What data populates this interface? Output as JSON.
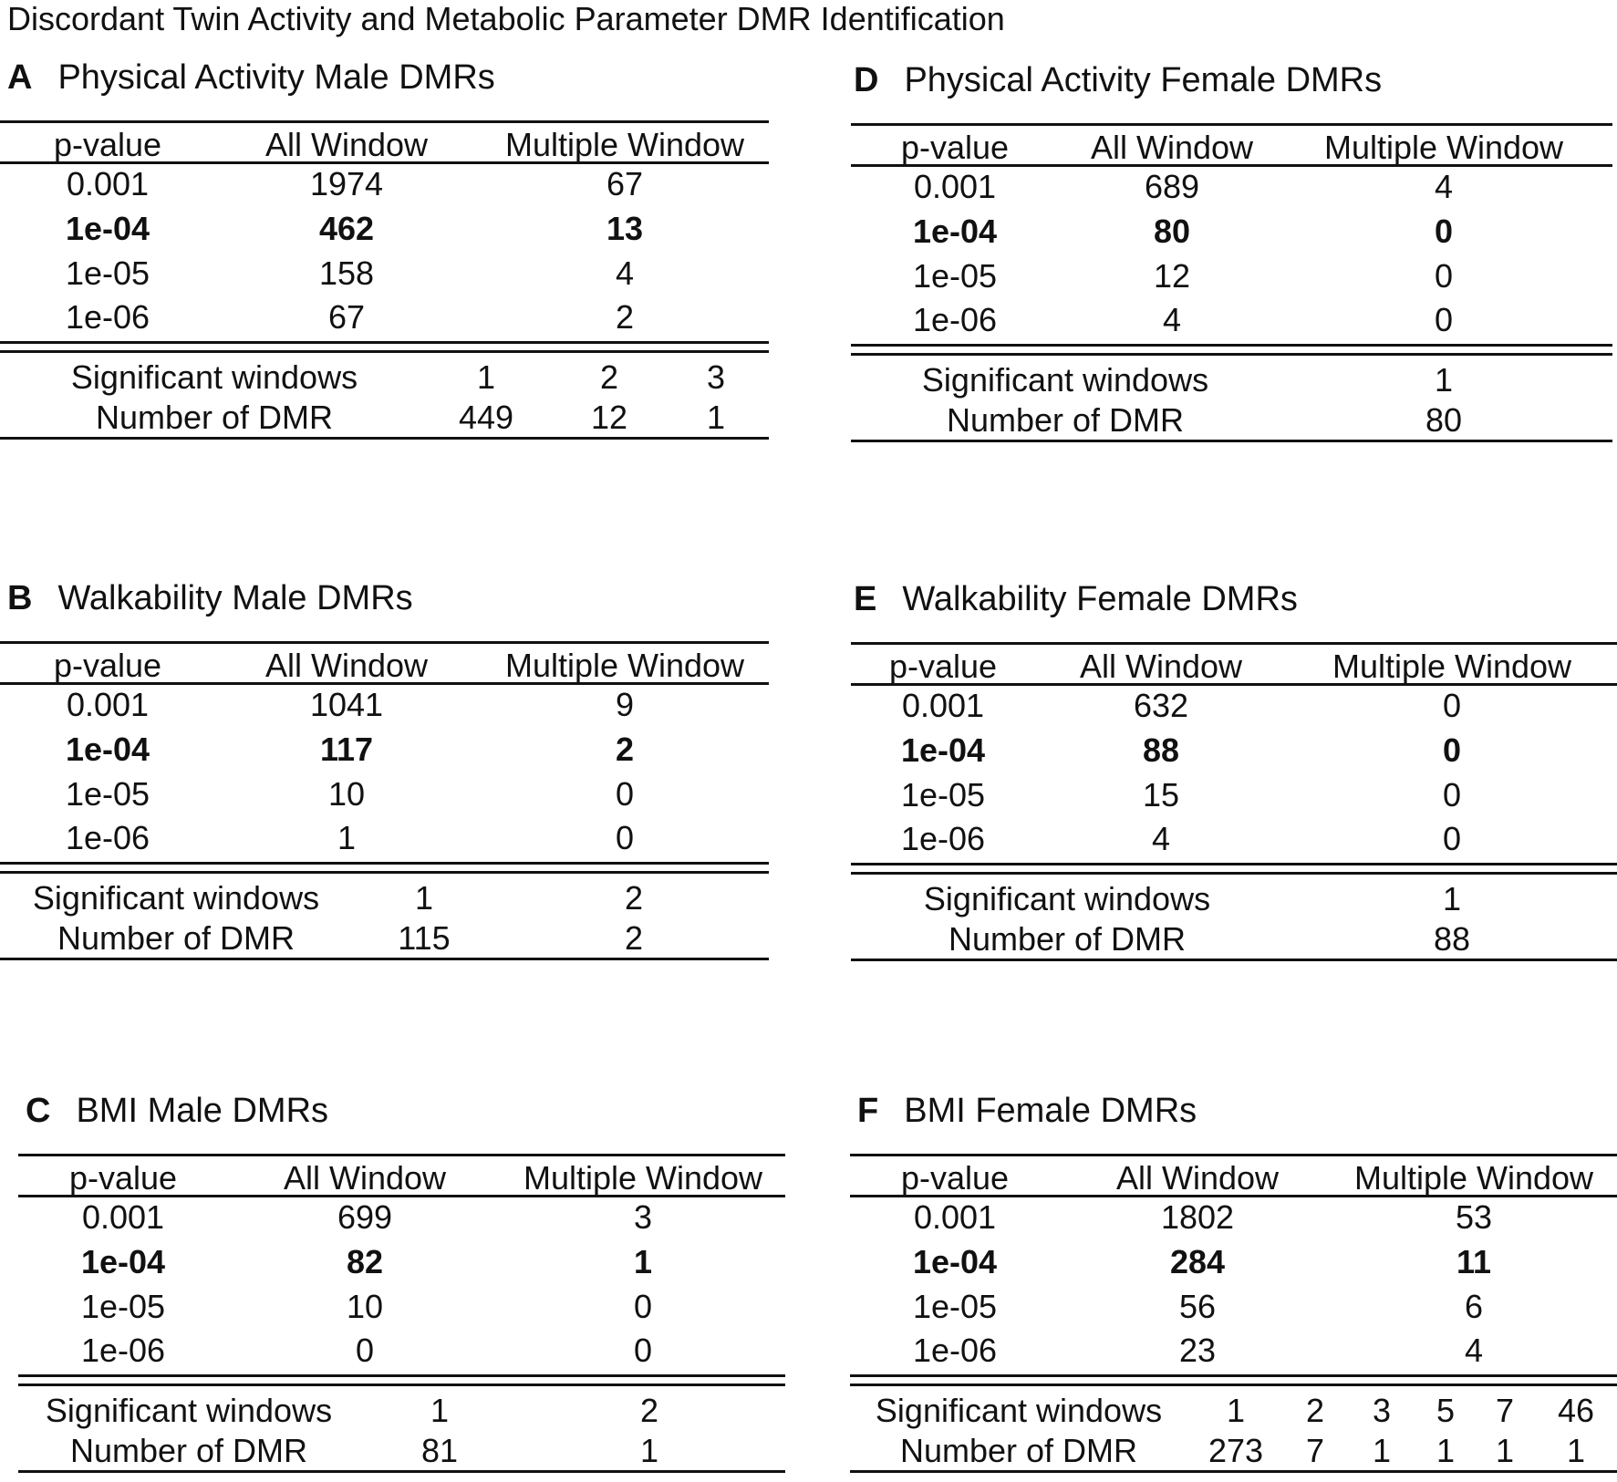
{
  "title": "Discordant Twin Activity and Metabolic Parameter DMR Identification",
  "panels": {
    "A": {
      "letter": "A",
      "title": "Physical Activity Male DMRs",
      "headers": [
        "p-value",
        "All Window",
        "Multiple Window"
      ],
      "rows": [
        [
          "0.001",
          "1974",
          "67"
        ],
        [
          "1e-04",
          "462",
          "13"
        ],
        [
          "1e-05",
          "158",
          "4"
        ],
        [
          "1e-06",
          "67",
          "2"
        ]
      ],
      "highlight_row": 1,
      "sig_label": "Significant windows",
      "sig_values": [
        "1",
        "2",
        "3"
      ],
      "dmr_label": "Number of DMR",
      "dmr_values": [
        "449",
        "12",
        "1"
      ]
    },
    "B": {
      "letter": "B",
      "title": "Walkability Male DMRs",
      "headers": [
        "p-value",
        "All Window",
        "Multiple Window"
      ],
      "rows": [
        [
          "0.001",
          "1041",
          "9"
        ],
        [
          "1e-04",
          "117",
          "2"
        ],
        [
          "1e-05",
          "10",
          "0"
        ],
        [
          "1e-06",
          "1",
          "0"
        ]
      ],
      "highlight_row": 1,
      "sig_label": "Significant windows",
      "sig_values": [
        "1",
        "2"
      ],
      "dmr_label": "Number of DMR",
      "dmr_values": [
        "115",
        "2"
      ]
    },
    "C": {
      "letter": "C",
      "title": "BMI Male DMRs",
      "headers": [
        "p-value",
        "All Window",
        "Multiple Window"
      ],
      "rows": [
        [
          "0.001",
          "699",
          "3"
        ],
        [
          "1e-04",
          "82",
          "1"
        ],
        [
          "1e-05",
          "10",
          "0"
        ],
        [
          "1e-06",
          "0",
          "0"
        ]
      ],
      "highlight_row": 1,
      "sig_label": "Significant windows",
      "sig_values": [
        "1",
        "2"
      ],
      "dmr_label": "Number of DMR",
      "dmr_values": [
        "81",
        "1"
      ]
    },
    "D": {
      "letter": "D",
      "title": "Physical Activity Female DMRs",
      "headers": [
        "p-value",
        "All Window",
        "Multiple Window"
      ],
      "rows": [
        [
          "0.001",
          "689",
          "4"
        ],
        [
          "1e-04",
          "80",
          "0"
        ],
        [
          "1e-05",
          "12",
          "0"
        ],
        [
          "1e-06",
          "4",
          "0"
        ]
      ],
      "highlight_row": 1,
      "sig_label": "Significant windows",
      "sig_values": [
        "1"
      ],
      "dmr_label": "Number of DMR",
      "dmr_values": [
        "80"
      ]
    },
    "E": {
      "letter": "E",
      "title": "Walkability Female DMRs",
      "headers": [
        "p-value",
        "All Window",
        "Multiple Window"
      ],
      "rows": [
        [
          "0.001",
          "632",
          "0"
        ],
        [
          "1e-04",
          "88",
          "0"
        ],
        [
          "1e-05",
          "15",
          "0"
        ],
        [
          "1e-06",
          "4",
          "0"
        ]
      ],
      "highlight_row": 1,
      "sig_label": "Significant windows",
      "sig_values": [
        "1"
      ],
      "dmr_label": "Number of DMR",
      "dmr_values": [
        "88"
      ]
    },
    "F": {
      "letter": "F",
      "title": "BMI Female DMRs",
      "headers": [
        "p-value",
        "All Window",
        "Multiple Window"
      ],
      "rows": [
        [
          "0.001",
          "1802",
          "53"
        ],
        [
          "1e-04",
          "284",
          "11"
        ],
        [
          "1e-05",
          "56",
          "6"
        ],
        [
          "1e-06",
          "23",
          "4"
        ]
      ],
      "highlight_row": 1,
      "sig_label": "Significant windows",
      "sig_values": [
        "1",
        "2",
        "3",
        "5",
        "7",
        "46"
      ],
      "dmr_label": "Number of DMR",
      "dmr_values": [
        "273",
        "7",
        "1",
        "1",
        "1",
        "1"
      ]
    }
  }
}
